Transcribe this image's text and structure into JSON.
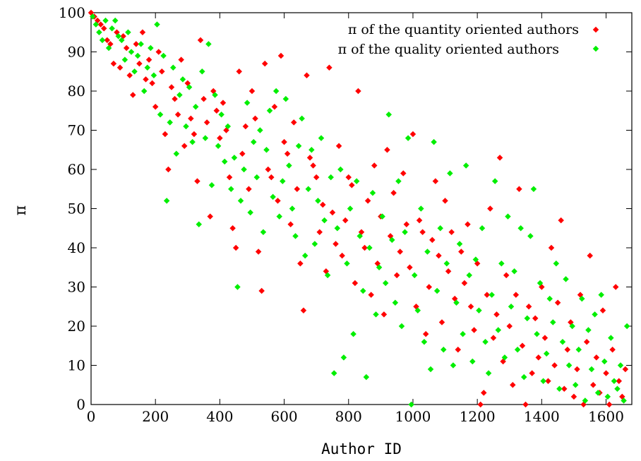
{
  "chart_data": {
    "type": "scatter",
    "xlabel": "Author ID",
    "ylabel": "π",
    "xlim": [
      0,
      1680
    ],
    "ylim": [
      0,
      100
    ],
    "x_ticks": [
      0,
      200,
      400,
      600,
      800,
      1000,
      1200,
      1400,
      1600
    ],
    "y_ticks": [
      0,
      10,
      20,
      30,
      40,
      50,
      60,
      70,
      80,
      90,
      100
    ],
    "grid": false,
    "legend_position": "top-right",
    "series": [
      {
        "name": "π of the quantity oriented authors",
        "color": "#ff0000",
        "marker": "diamond",
        "points": [
          [
            0,
            100
          ],
          [
            10,
            99
          ],
          [
            20,
            98
          ],
          [
            30,
            97
          ],
          [
            40,
            96
          ],
          [
            50,
            93
          ],
          [
            60,
            92
          ],
          [
            70,
            87
          ],
          [
            80,
            95
          ],
          [
            90,
            86
          ],
          [
            100,
            94
          ],
          [
            110,
            91
          ],
          [
            120,
            84
          ],
          [
            130,
            79
          ],
          [
            140,
            92
          ],
          [
            150,
            87
          ],
          [
            160,
            95
          ],
          [
            170,
            83
          ],
          [
            180,
            88
          ],
          [
            190,
            82
          ],
          [
            200,
            76
          ],
          [
            210,
            90
          ],
          [
            220,
            85
          ],
          [
            230,
            69
          ],
          [
            240,
            60
          ],
          [
            250,
            81
          ],
          [
            260,
            78
          ],
          [
            270,
            74
          ],
          [
            280,
            88
          ],
          [
            290,
            66
          ],
          [
            300,
            82
          ],
          [
            310,
            73
          ],
          [
            320,
            69
          ],
          [
            330,
            57
          ],
          [
            340,
            93
          ],
          [
            350,
            78
          ],
          [
            360,
            72
          ],
          [
            370,
            48
          ],
          [
            380,
            80
          ],
          [
            390,
            75
          ],
          [
            400,
            68
          ],
          [
            410,
            77
          ],
          [
            420,
            70
          ],
          [
            430,
            58
          ],
          [
            440,
            45
          ],
          [
            450,
            40
          ],
          [
            460,
            85
          ],
          [
            470,
            64
          ],
          [
            480,
            71
          ],
          [
            490,
            55
          ],
          [
            500,
            80
          ],
          [
            510,
            73
          ],
          [
            520,
            39
          ],
          [
            530,
            29
          ],
          [
            540,
            87
          ],
          [
            550,
            60
          ],
          [
            560,
            58
          ],
          [
            570,
            76
          ],
          [
            580,
            52
          ],
          [
            590,
            89
          ],
          [
            600,
            67
          ],
          [
            610,
            64
          ],
          [
            620,
            46
          ],
          [
            630,
            72
          ],
          [
            640,
            55
          ],
          [
            650,
            36
          ],
          [
            660,
            24
          ],
          [
            670,
            84
          ],
          [
            680,
            63
          ],
          [
            690,
            61
          ],
          [
            700,
            58
          ],
          [
            710,
            44
          ],
          [
            720,
            51
          ],
          [
            730,
            34
          ],
          [
            740,
            86
          ],
          [
            750,
            49
          ],
          [
            760,
            41
          ],
          [
            770,
            66
          ],
          [
            780,
            38
          ],
          [
            790,
            47
          ],
          [
            800,
            58
          ],
          [
            810,
            56
          ],
          [
            820,
            31
          ],
          [
            830,
            80
          ],
          [
            840,
            44
          ],
          [
            850,
            40
          ],
          [
            860,
            52
          ],
          [
            870,
            28
          ],
          [
            880,
            61
          ],
          [
            890,
            36
          ],
          [
            900,
            48
          ],
          [
            910,
            23
          ],
          [
            920,
            65
          ],
          [
            930,
            43
          ],
          [
            940,
            54
          ],
          [
            950,
            33
          ],
          [
            960,
            39
          ],
          [
            970,
            59
          ],
          [
            980,
            46
          ],
          [
            990,
            35
          ],
          [
            1000,
            69
          ],
          [
            1010,
            25
          ],
          [
            1020,
            47
          ],
          [
            1030,
            44
          ],
          [
            1040,
            18
          ],
          [
            1050,
            30
          ],
          [
            1060,
            42
          ],
          [
            1070,
            57
          ],
          [
            1080,
            38
          ],
          [
            1090,
            21
          ],
          [
            1100,
            52
          ],
          [
            1110,
            34
          ],
          [
            1120,
            44
          ],
          [
            1130,
            27
          ],
          [
            1140,
            14
          ],
          [
            1150,
            39
          ],
          [
            1160,
            31
          ],
          [
            1170,
            46
          ],
          [
            1180,
            25
          ],
          [
            1190,
            19
          ],
          [
            1200,
            36
          ],
          [
            1210,
            0
          ],
          [
            1220,
            3
          ],
          [
            1230,
            28
          ],
          [
            1240,
            50
          ],
          [
            1250,
            17
          ],
          [
            1260,
            23
          ],
          [
            1270,
            63
          ],
          [
            1280,
            11
          ],
          [
            1290,
            33
          ],
          [
            1300,
            20
          ],
          [
            1310,
            5
          ],
          [
            1320,
            28
          ],
          [
            1330,
            55
          ],
          [
            1340,
            15
          ],
          [
            1350,
            0
          ],
          [
            1360,
            25
          ],
          [
            1370,
            8
          ],
          [
            1380,
            22
          ],
          [
            1390,
            12
          ],
          [
            1400,
            30
          ],
          [
            1410,
            17
          ],
          [
            1420,
            6
          ],
          [
            1430,
            40
          ],
          [
            1440,
            10
          ],
          [
            1450,
            26
          ],
          [
            1460,
            47
          ],
          [
            1470,
            4
          ],
          [
            1480,
            14
          ],
          [
            1490,
            21
          ],
          [
            1500,
            2
          ],
          [
            1510,
            9
          ],
          [
            1520,
            28
          ],
          [
            1530,
            0
          ],
          [
            1540,
            16
          ],
          [
            1550,
            38
          ],
          [
            1560,
            5
          ],
          [
            1570,
            12
          ],
          [
            1580,
            3
          ],
          [
            1590,
            24
          ],
          [
            1600,
            8
          ],
          [
            1610,
            0
          ],
          [
            1620,
            14
          ],
          [
            1630,
            30
          ],
          [
            1640,
            6
          ],
          [
            1650,
            2
          ],
          [
            1660,
            9
          ]
        ]
      },
      {
        "name": "π of the quality oriented authors",
        "color": "#00ee00",
        "marker": "diamond",
        "points": [
          [
            5,
            99
          ],
          [
            15,
            97
          ],
          [
            25,
            95
          ],
          [
            35,
            93
          ],
          [
            45,
            98
          ],
          [
            55,
            91
          ],
          [
            65,
            96
          ],
          [
            75,
            98
          ],
          [
            85,
            94
          ],
          [
            95,
            93
          ],
          [
            105,
            88
          ],
          [
            115,
            95
          ],
          [
            125,
            90
          ],
          [
            135,
            85
          ],
          [
            145,
            89
          ],
          [
            155,
            92
          ],
          [
            165,
            80
          ],
          [
            175,
            86
          ],
          [
            185,
            91
          ],
          [
            195,
            84
          ],
          [
            205,
            97
          ],
          [
            215,
            74
          ],
          [
            225,
            89
          ],
          [
            235,
            52
          ],
          [
            245,
            72
          ],
          [
            255,
            86
          ],
          [
            265,
            64
          ],
          [
            275,
            79
          ],
          [
            285,
            83
          ],
          [
            295,
            71
          ],
          [
            305,
            81
          ],
          [
            315,
            67
          ],
          [
            325,
            76
          ],
          [
            335,
            46
          ],
          [
            345,
            85
          ],
          [
            355,
            68
          ],
          [
            365,
            92
          ],
          [
            375,
            56
          ],
          [
            385,
            79
          ],
          [
            395,
            66
          ],
          [
            405,
            74
          ],
          [
            415,
            62
          ],
          [
            425,
            71
          ],
          [
            435,
            55
          ],
          [
            445,
            63
          ],
          [
            455,
            30
          ],
          [
            465,
            52
          ],
          [
            475,
            60
          ],
          [
            485,
            77
          ],
          [
            495,
            49
          ],
          [
            505,
            67
          ],
          [
            515,
            58
          ],
          [
            525,
            70
          ],
          [
            535,
            44
          ],
          [
            545,
            65
          ],
          [
            555,
            75
          ],
          [
            565,
            53
          ],
          [
            575,
            80
          ],
          [
            585,
            48
          ],
          [
            595,
            57
          ],
          [
            605,
            78
          ],
          [
            615,
            61
          ],
          [
            625,
            50
          ],
          [
            635,
            43
          ],
          [
            645,
            66
          ],
          [
            655,
            73
          ],
          [
            665,
            38
          ],
          [
            675,
            55
          ],
          [
            685,
            65
          ],
          [
            695,
            41
          ],
          [
            705,
            52
          ],
          [
            715,
            68
          ],
          [
            725,
            47
          ],
          [
            735,
            33
          ],
          [
            745,
            58
          ],
          [
            755,
            8
          ],
          [
            765,
            45
          ],
          [
            775,
            60
          ],
          [
            785,
            12
          ],
          [
            795,
            36
          ],
          [
            805,
            50
          ],
          [
            815,
            18
          ],
          [
            825,
            57
          ],
          [
            835,
            43
          ],
          [
            845,
            29
          ],
          [
            855,
            7
          ],
          [
            865,
            40
          ],
          [
            875,
            54
          ],
          [
            885,
            23
          ],
          [
            895,
            35
          ],
          [
            905,
            48
          ],
          [
            915,
            31
          ],
          [
            925,
            74
          ],
          [
            935,
            42
          ],
          [
            945,
            26
          ],
          [
            955,
            57
          ],
          [
            965,
            20
          ],
          [
            975,
            44
          ],
          [
            985,
            68
          ],
          [
            995,
            0
          ],
          [
            1005,
            33
          ],
          [
            1015,
            24
          ],
          [
            1025,
            50
          ],
          [
            1035,
            16
          ],
          [
            1045,
            39
          ],
          [
            1055,
            9
          ],
          [
            1065,
            67
          ],
          [
            1075,
            29
          ],
          [
            1085,
            45
          ],
          [
            1095,
            14
          ],
          [
            1105,
            36
          ],
          [
            1115,
            59
          ],
          [
            1125,
            10
          ],
          [
            1135,
            26
          ],
          [
            1145,
            41
          ],
          [
            1155,
            18
          ],
          [
            1165,
            61
          ],
          [
            1175,
            33
          ],
          [
            1185,
            11
          ],
          [
            1195,
            37
          ],
          [
            1205,
            24
          ],
          [
            1215,
            45
          ],
          [
            1225,
            16
          ],
          [
            1235,
            8
          ],
          [
            1245,
            28
          ],
          [
            1255,
            57
          ],
          [
            1265,
            19
          ],
          [
            1275,
            36
          ],
          [
            1285,
            12
          ],
          [
            1295,
            48
          ],
          [
            1305,
            25
          ],
          [
            1315,
            34
          ],
          [
            1325,
            14
          ],
          [
            1335,
            45
          ],
          [
            1345,
            7
          ],
          [
            1355,
            22
          ],
          [
            1365,
            43
          ],
          [
            1375,
            55
          ],
          [
            1385,
            18
          ],
          [
            1395,
            31
          ],
          [
            1405,
            6
          ],
          [
            1415,
            13
          ],
          [
            1425,
            27
          ],
          [
            1435,
            21
          ],
          [
            1445,
            36
          ],
          [
            1455,
            4
          ],
          [
            1465,
            16
          ],
          [
            1475,
            32
          ],
          [
            1485,
            10
          ],
          [
            1495,
            20
          ],
          [
            1505,
            5
          ],
          [
            1515,
            14
          ],
          [
            1525,
            27
          ],
          [
            1535,
            1
          ],
          [
            1545,
            19
          ],
          [
            1555,
            9
          ],
          [
            1565,
            23
          ],
          [
            1575,
            3
          ],
          [
            1585,
            28
          ],
          [
            1595,
            11
          ],
          [
            1605,
            2
          ],
          [
            1615,
            17
          ],
          [
            1625,
            6
          ],
          [
            1635,
            4
          ],
          [
            1645,
            10
          ],
          [
            1655,
            1
          ],
          [
            1665,
            20
          ]
        ]
      }
    ]
  }
}
